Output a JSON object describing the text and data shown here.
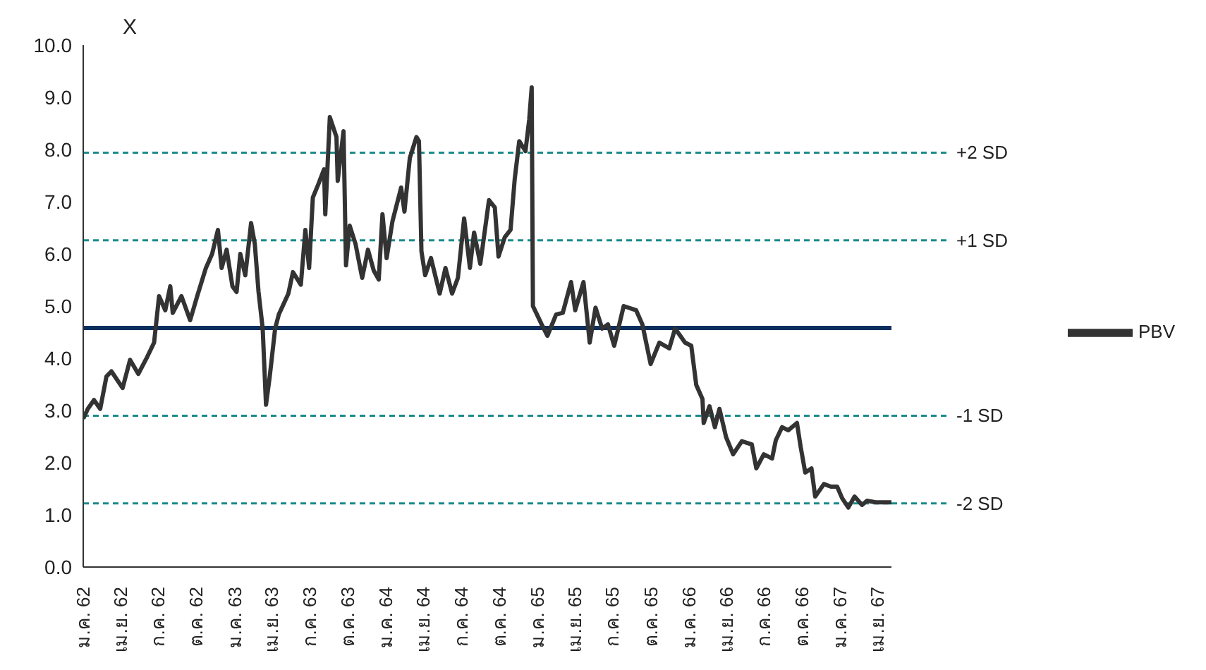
{
  "chart_data": {
    "type": "line",
    "ylabel": "X",
    "legend": "right",
    "line_style": "solid",
    "marker": "none",
    "xlim": [
      "2562-01-01",
      "2567-05-05"
    ],
    "xticks": [
      {
        "value": "2562-01-01",
        "label": "ม.ค. 62"
      },
      {
        "value": "2562-04-01",
        "label": "เม.ย. 62"
      },
      {
        "value": "2562-07-01",
        "label": "ก.ค. 62"
      },
      {
        "value": "2562-10-01",
        "label": "ต.ค. 62"
      },
      {
        "value": "2563-01-01",
        "label": "ม.ค. 63"
      },
      {
        "value": "2563-04-01",
        "label": "เม.ย. 63"
      },
      {
        "value": "2563-07-01",
        "label": "ก.ค. 63"
      },
      {
        "value": "2563-10-01",
        "label": "ต.ค. 63"
      },
      {
        "value": "2564-01-01",
        "label": "ม.ค. 64"
      },
      {
        "value": "2564-04-01",
        "label": "เม.ย. 64"
      },
      {
        "value": "2564-07-01",
        "label": "ก.ค. 64"
      },
      {
        "value": "2564-10-01",
        "label": "ต.ค. 64"
      },
      {
        "value": "2565-01-01",
        "label": "ม.ค. 65"
      },
      {
        "value": "2565-04-01",
        "label": "เม.ย. 65"
      },
      {
        "value": "2565-07-01",
        "label": "ก.ค. 65"
      },
      {
        "value": "2565-10-01",
        "label": "ต.ค. 65"
      },
      {
        "value": "2566-01-01",
        "label": "ม.ค. 66"
      },
      {
        "value": "2566-04-01",
        "label": "เม.ย. 66"
      },
      {
        "value": "2566-07-01",
        "label": "ก.ค. 66"
      },
      {
        "value": "2566-10-01",
        "label": "ต.ค. 66"
      },
      {
        "value": "2567-01-01",
        "label": "ม.ค. 67"
      },
      {
        "value": "2567-04-01",
        "label": "เม.ย. 67"
      }
    ],
    "ylim": [
      0,
      10
    ],
    "yticks": [
      {
        "value": 0,
        "label": "0.0"
      },
      {
        "value": 1,
        "label": "1.0"
      },
      {
        "value": 2,
        "label": "2.0"
      },
      {
        "value": 3,
        "label": "3.0"
      },
      {
        "value": 4,
        "label": "4.0"
      },
      {
        "value": 5,
        "label": "5.0"
      },
      {
        "value": 6,
        "label": "6.0"
      },
      {
        "value": 7,
        "label": "7.0"
      },
      {
        "value": 8,
        "label": "8.0"
      },
      {
        "value": 9,
        "label": "9.0"
      },
      {
        "value": 10,
        "label": "10.0"
      }
    ],
    "ref_lines": [
      {
        "axis": "y",
        "value": 7.94,
        "label": "+2 SD",
        "color": "#1a8a8a",
        "line_style": "dashed"
      },
      {
        "axis": "y",
        "value": 6.26,
        "label": "+1 SD",
        "color": "#1a8a8a",
        "line_style": "dashed"
      },
      {
        "axis": "y",
        "value": 4.58,
        "color": "#0d2f5e",
        "line_style": "solid"
      },
      {
        "axis": "y",
        "value": 2.9,
        "label": "-1 SD",
        "color": "#1a8a8a",
        "line_style": "dashed"
      },
      {
        "axis": "y",
        "value": 1.22,
        "label": "-2 SD",
        "color": "#1a8a8a",
        "line_style": "dashed"
      }
    ],
    "series": [
      {
        "name": "PBV",
        "color": "#333333",
        "x": [
          "2562-01-01",
          "2562-01-12",
          "2562-01-27",
          "2562-02-11",
          "2562-02-26",
          "2562-03-10",
          "2562-04-06",
          "2562-04-24",
          "2562-05-14",
          "2562-06-04",
          "2562-06-21",
          "2562-07-03",
          "2562-07-18",
          "2562-07-30",
          "2562-08-05",
          "2562-08-26",
          "2562-09-16",
          "2562-10-03",
          "2562-10-24",
          "2562-11-08",
          "2562-11-22",
          "2562-12-01",
          "2562-12-13",
          "2562-12-27",
          "2563-01-06",
          "2563-01-15",
          "2563-01-27",
          "2563-02-10",
          "2563-02-19",
          "2563-02-28",
          "2563-03-10",
          "2563-03-18",
          "2563-03-27",
          "2563-04-09",
          "2563-04-18",
          "2563-05-11",
          "2563-05-22",
          "2563-06-10",
          "2563-06-21",
          "2563-06-30",
          "2563-07-09",
          "2563-07-23",
          "2563-08-05",
          "2563-08-08",
          "2563-08-19",
          "2563-09-04",
          "2563-09-07",
          "2563-09-21",
          "2563-09-27",
          "2563-10-06",
          "2563-10-20",
          "2563-11-05",
          "2563-11-19",
          "2563-12-03",
          "2563-12-15",
          "2563-12-24",
          "2564-01-03",
          "2564-01-17",
          "2564-02-07",
          "2564-02-15",
          "2564-02-28",
          "2564-03-15",
          "2564-03-21",
          "2564-03-27",
          "2564-04-05",
          "2564-04-19",
          "2564-05-10",
          "2564-05-24",
          "2564-06-09",
          "2564-06-23",
          "2564-07-08",
          "2564-07-22",
          "2564-08-01",
          "2564-08-16",
          "2564-09-06",
          "2564-09-20",
          "2564-09-29",
          "2564-10-14",
          "2564-10-28",
          "2564-11-07",
          "2564-11-18",
          "2564-12-03",
          "2564-12-12",
          "2564-12-18",
          "2564-12-21",
          "2565-01-11",
          "2565-01-25",
          "2565-02-15",
          "2565-03-03",
          "2565-03-23",
          "2565-04-02",
          "2565-04-22",
          "2565-05-07",
          "2565-05-21",
          "2565-06-06",
          "2565-06-20",
          "2565-07-05",
          "2565-07-28",
          "2565-08-27",
          "2565-09-11",
          "2565-10-01",
          "2565-10-22",
          "2565-11-15",
          "2565-11-29",
          "2565-12-23",
          "2566-01-07",
          "2566-01-19",
          "2566-02-03",
          "2566-02-06",
          "2566-02-20",
          "2566-03-05",
          "2566-03-16",
          "2566-04-01",
          "2566-04-18",
          "2566-05-09",
          "2566-06-02",
          "2566-06-13",
          "2566-07-01",
          "2566-07-21",
          "2566-07-30",
          "2566-08-14",
          "2566-08-29",
          "2566-09-19",
          "2566-09-28",
          "2566-10-09",
          "2566-10-24",
          "2566-11-02",
          "2566-11-23",
          "2566-12-10",
          "2566-12-25",
          "2567-01-06",
          "2567-01-21",
          "2567-02-05",
          "2567-02-23",
          "2567-03-07",
          "2567-03-28",
          "2567-05-05"
        ],
        "values": [
          2.84,
          3.03,
          3.2,
          3.03,
          3.65,
          3.75,
          3.43,
          3.97,
          3.7,
          4.02,
          4.3,
          5.19,
          4.92,
          5.38,
          4.87,
          5.19,
          4.73,
          5.19,
          5.73,
          6.0,
          6.46,
          5.73,
          6.08,
          5.38,
          5.27,
          6.0,
          5.59,
          6.59,
          6.19,
          5.27,
          4.57,
          3.11,
          3.65,
          4.57,
          4.84,
          5.24,
          5.65,
          5.41,
          6.46,
          5.73,
          7.08,
          7.35,
          7.62,
          6.76,
          8.62,
          8.24,
          7.4,
          8.35,
          5.78,
          6.54,
          6.19,
          5.54,
          6.08,
          5.68,
          5.51,
          6.76,
          5.92,
          6.62,
          7.27,
          6.81,
          7.84,
          8.24,
          8.16,
          6.05,
          5.59,
          5.92,
          5.24,
          5.73,
          5.24,
          5.54,
          6.68,
          5.73,
          6.41,
          5.81,
          7.03,
          6.89,
          5.95,
          6.32,
          6.46,
          7.43,
          8.16,
          7.97,
          8.57,
          9.19,
          5.0,
          4.65,
          4.43,
          4.84,
          4.87,
          5.46,
          4.92,
          5.46,
          4.3,
          4.97,
          4.57,
          4.65,
          4.24,
          5.0,
          4.92,
          4.65,
          3.89,
          4.3,
          4.19,
          4.57,
          4.3,
          4.24,
          3.49,
          3.22,
          2.76,
          3.08,
          2.68,
          3.03,
          2.49,
          2.16,
          2.41,
          2.35,
          1.89,
          2.16,
          2.08,
          2.43,
          2.68,
          2.62,
          2.76,
          2.3,
          1.81,
          1.89,
          1.35,
          1.59,
          1.54,
          1.54,
          1.32,
          1.14,
          1.35,
          1.19,
          1.27,
          1.24,
          1.24
        ]
      }
    ]
  }
}
